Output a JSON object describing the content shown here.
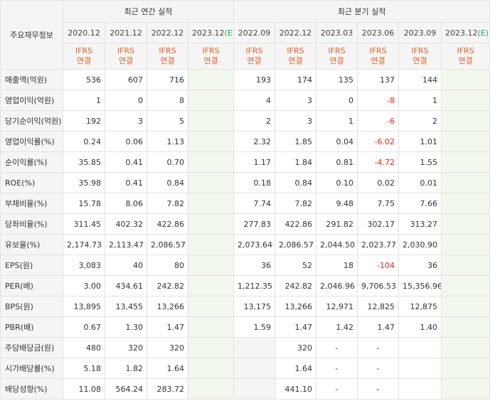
{
  "corner_label": "주요재무정보",
  "groups": {
    "annual": "최근 연간 실적",
    "quarterly": "최근 분기 실적"
  },
  "periods": [
    "2020.12",
    "2021.12",
    "2022.12",
    "2023.12",
    "2022.09",
    "2022.12",
    "2023.03",
    "2023.06",
    "2023.09",
    "2023.12"
  ],
  "estimate_mark": "(E)",
  "ifrs": {
    "line1": "IFRS",
    "line2": "연결"
  },
  "colors": {
    "ifrs_text": "#e6602a",
    "negative": "#e0291d",
    "estimate_bg": "#f2f8ee",
    "estimate_mark": "#27a35b"
  },
  "rows": [
    {
      "label": "매출액(억원)",
      "values": [
        "536",
        "607",
        "716",
        "",
        "193",
        "174",
        "135",
        "137",
        "144",
        ""
      ]
    },
    {
      "label": "영업이익(억원)",
      "values": [
        "1",
        "0",
        "8",
        "",
        "4",
        "3",
        "0",
        "-8",
        "1",
        ""
      ]
    },
    {
      "label": "당기순이익(억원)",
      "values": [
        "192",
        "3",
        "5",
        "",
        "2",
        "3",
        "1",
        "-6",
        "2",
        ""
      ]
    },
    {
      "label": "영업이익률(%)",
      "values": [
        "0.24",
        "0.06",
        "1.13",
        "",
        "2.32",
        "1.85",
        "0.04",
        "-6.02",
        "1.01",
        ""
      ]
    },
    {
      "label": "순이익률(%)",
      "values": [
        "35.85",
        "0.41",
        "0.70",
        "",
        "1.17",
        "1.84",
        "0.81",
        "-4.72",
        "1.55",
        ""
      ]
    },
    {
      "label": "ROE(%)",
      "values": [
        "35.98",
        "0.41",
        "0.84",
        "",
        "0.18",
        "0.84",
        "0.10",
        "0.02",
        "0.01",
        ""
      ]
    },
    {
      "label": "부채비율(%)",
      "values": [
        "15.78",
        "8.06",
        "7.82",
        "",
        "7.74",
        "7.82",
        "9.48",
        "7.75",
        "7.66",
        ""
      ]
    },
    {
      "label": "당좌비율(%)",
      "values": [
        "311.45",
        "402.32",
        "422.86",
        "",
        "277.83",
        "422.86",
        "291.82",
        "302.17",
        "313.27",
        ""
      ]
    },
    {
      "label": "유보율(%)",
      "values": [
        "2,174.73",
        "2,113.47",
        "2,086.57",
        "",
        "2,073.64",
        "2,086.57",
        "2,044.50",
        "2,023.77",
        "2,030.90",
        ""
      ]
    },
    {
      "label": "EPS(원)",
      "values": [
        "3,083",
        "40",
        "80",
        "",
        "36",
        "52",
        "18",
        "-104",
        "36",
        ""
      ]
    },
    {
      "label": "PER(배)",
      "values": [
        "3.00",
        "434.61",
        "242.82",
        "",
        "1,212.35",
        "242.82",
        "2,046.96",
        "9,706.53",
        "15,356.96",
        ""
      ]
    },
    {
      "label": "BPS(원)",
      "values": [
        "13,895",
        "13,455",
        "13,266",
        "",
        "13,175",
        "13,266",
        "12,971",
        "12,825",
        "12,875",
        ""
      ]
    },
    {
      "label": "PBR(배)",
      "values": [
        "0.67",
        "1.30",
        "1.47",
        "",
        "1.59",
        "1.47",
        "1.42",
        "1.47",
        "1.40",
        ""
      ]
    },
    {
      "label": "주당배당금(원)",
      "values": [
        "480",
        "320",
        "320",
        "",
        "",
        "320",
        "-",
        "-",
        "",
        ""
      ]
    },
    {
      "label": "시가배당률(%)",
      "values": [
        "5.18",
        "1.82",
        "1.64",
        "",
        "",
        "1.64",
        "-",
        "-",
        "",
        ""
      ]
    },
    {
      "label": "배당성향(%)",
      "values": [
        "11.08",
        "564.24",
        "283.72",
        "",
        "",
        "441.10",
        "-",
        "-",
        "",
        ""
      ]
    }
  ]
}
